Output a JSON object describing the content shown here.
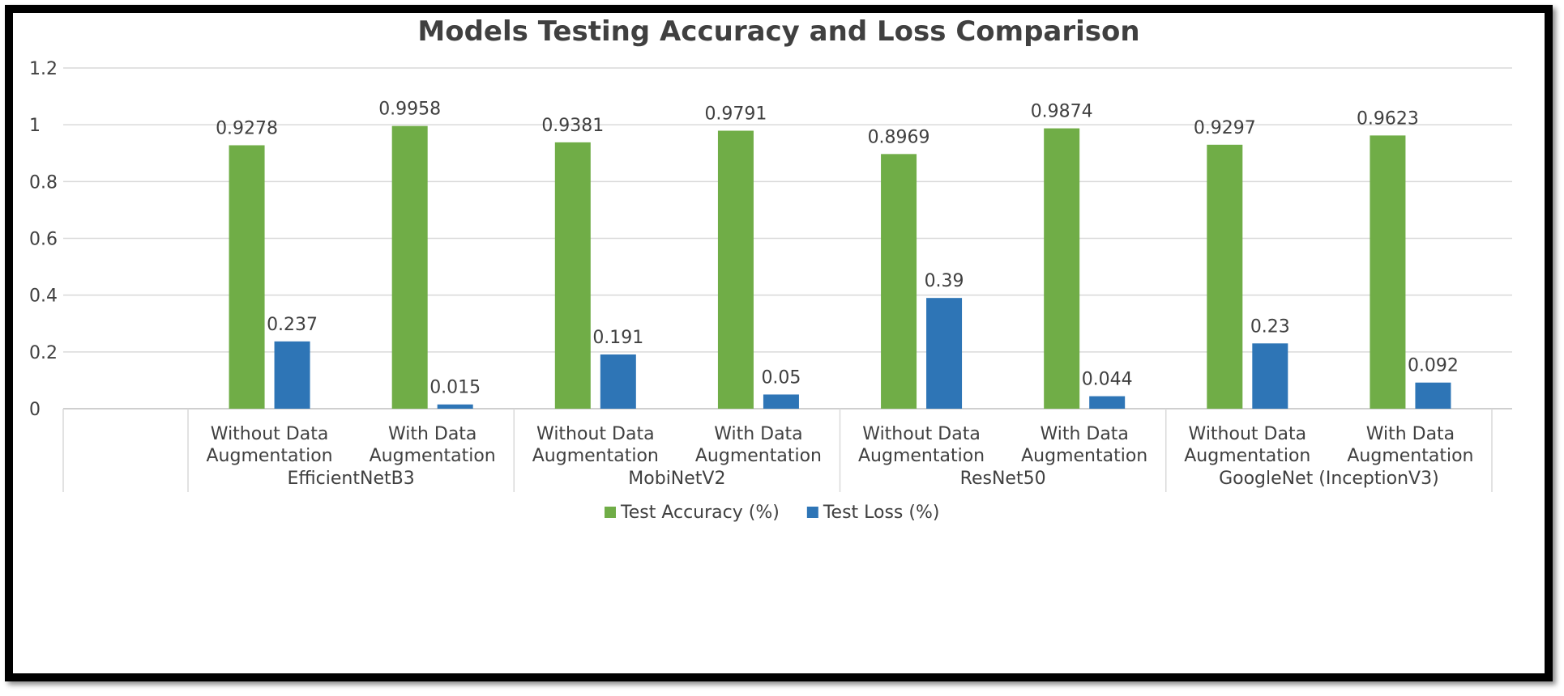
{
  "chart_data": {
    "type": "bar",
    "title": "Models Testing Accuracy and Loss Comparison",
    "xlabel": "",
    "ylabel": "",
    "ylim": [
      0,
      1.2
    ],
    "yticks": [
      "0",
      "0.2",
      "0.4",
      "0.6",
      "0.8",
      "1",
      "1.2"
    ],
    "grid": true,
    "legend_position": "bottom",
    "groups": [
      "EfficientNetB3",
      "MobiNetV2",
      "ResNet50",
      "GoogleNet (InceptionV3)"
    ],
    "categories": [
      [
        "Without Data",
        "Augmentation"
      ],
      [
        "With Data",
        "Augmentation"
      ],
      [
        "Without Data",
        "Augmentation"
      ],
      [
        "With Data",
        "Augmentation"
      ],
      [
        "Without Data",
        "Augmentation"
      ],
      [
        "With Data",
        "Augmentation"
      ],
      [
        "Without Data",
        "Augmentation"
      ],
      [
        "With Data",
        "Augmentation"
      ]
    ],
    "series": [
      {
        "name": "Test Accuracy (%)",
        "color": "#70ad47",
        "values": [
          0.9278,
          0.9958,
          0.9381,
          0.9791,
          0.8969,
          0.9874,
          0.9297,
          0.9623
        ],
        "labels": [
          "0.9278",
          "0.9958",
          "0.9381",
          "0.9791",
          "0.8969",
          "0.9874",
          "0.9297",
          "0.9623"
        ]
      },
      {
        "name": "Test Loss (%)",
        "color": "#2e75b6",
        "values": [
          0.237,
          0.015,
          0.191,
          0.05,
          0.39,
          0.044,
          0.23,
          0.092
        ],
        "labels": [
          "0.237",
          "0.015",
          "0.191",
          "0.05",
          "0.39",
          "0.044",
          "0.23",
          "0.092"
        ]
      }
    ]
  }
}
